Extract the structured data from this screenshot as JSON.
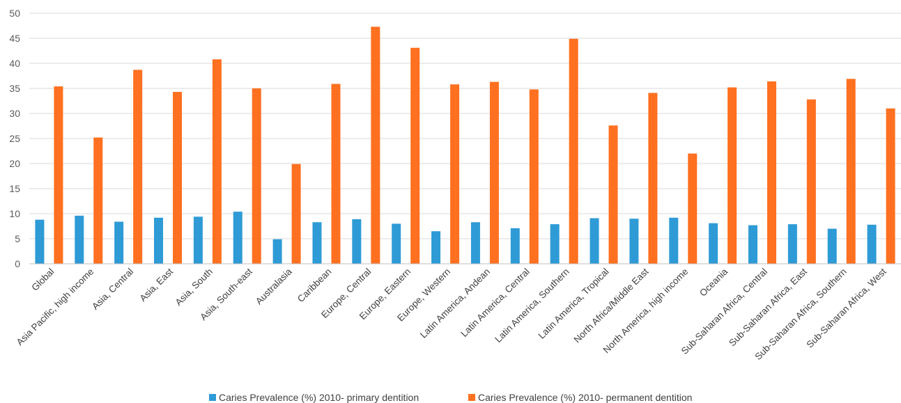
{
  "chart_data": {
    "type": "bar",
    "title": "",
    "xlabel": "",
    "ylabel": "",
    "ylim": [
      0,
      50
    ],
    "yticks": [
      0,
      5,
      10,
      15,
      20,
      25,
      30,
      35,
      40,
      45,
      50
    ],
    "grid": true,
    "legend_position": "bottom",
    "categories": [
      "Global",
      "Asia Pacific, high income",
      "Asia, Central",
      "Asia, East",
      "Asia, South",
      "Asia, South-east",
      "Australasia",
      "Caribbean",
      "Europe, Central",
      "Europe, Eastern",
      "Europe, Western",
      "Latin America, Andean",
      "Latin America, Central",
      "Latin America, Southern",
      "Latin America, Tropical",
      "North Africa/Middle East",
      "North America, high income",
      "Oceania",
      "Sub-Saharan Africa, Central",
      "Sub-Saharan Africa, East",
      "Sub-Saharan Africa, Southern",
      "Sub-Saharan Africa, West"
    ],
    "series": [
      {
        "name": "Caries Prevalence (%) 2010- primary dentition",
        "color": "#2e9bd6",
        "values": [
          8.8,
          9.6,
          8.4,
          9.2,
          9.4,
          10.4,
          4.9,
          8.3,
          8.9,
          8.0,
          6.5,
          8.3,
          7.1,
          7.9,
          9.1,
          9.0,
          9.2,
          8.1,
          7.7,
          7.9,
          7.0,
          7.8
        ]
      },
      {
        "name": "Caries Prevalence (%) 2010- permanent  dentition",
        "color": "#ff7020",
        "values": [
          35.4,
          25.2,
          38.7,
          34.3,
          40.8,
          35.0,
          19.9,
          35.9,
          47.3,
          43.1,
          35.8,
          36.3,
          34.8,
          44.9,
          27.6,
          34.1,
          22.0,
          35.2,
          36.4,
          32.8,
          36.9,
          31.0
        ]
      }
    ]
  }
}
